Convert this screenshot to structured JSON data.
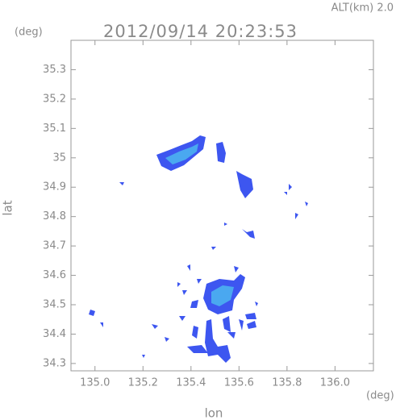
{
  "chart_data": {
    "type": "map",
    "altitude_label": "ALT(km) 2.0",
    "title": "2012/09/14 20:23:53",
    "y_unit": "(deg)",
    "x_unit": "(deg)",
    "xlabel": "lon",
    "ylabel": "lat",
    "xlim": [
      134.9,
      136.16
    ],
    "ylim": [
      34.275,
      35.4
    ],
    "xticks": [
      {
        "value": 135,
        "label": "135.0"
      },
      135.2,
      135.4,
      135.6,
      135.8,
      {
        "value": 136,
        "label": "136.0"
      }
    ],
    "yticks": [
      34.3,
      34.4,
      34.5,
      34.6,
      34.7,
      34.8,
      34.9,
      35.0,
      35.1,
      35.2,
      35.3
    ]
  }
}
